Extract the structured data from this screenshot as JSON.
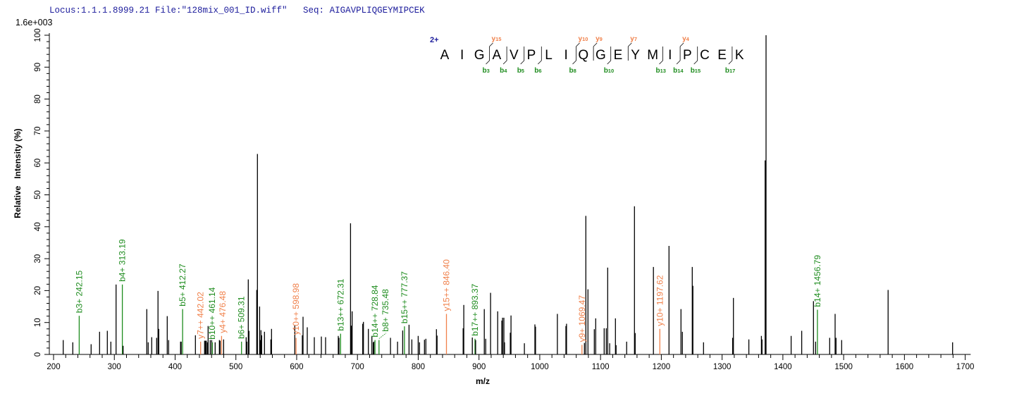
{
  "header": {
    "title": "Locus:1.1.1.8999.21 File:\"128mix_001_ID.wiff\"   Seq: AIGAVPLIQGEYMIPCEK"
  },
  "colors": {
    "b_ion": "#1e8c1e",
    "y_ion": "#f0804a",
    "unassigned": "#000000",
    "title": "#1c1c9c"
  },
  "sequence": {
    "charge": "2+",
    "residues": [
      "A",
      "I",
      "G",
      "A",
      "V",
      "P",
      "L",
      "I",
      "Q",
      "G",
      "E",
      "Y",
      "M",
      "I",
      "P",
      "C",
      "E",
      "K"
    ],
    "breaks": [
      {
        "after": 3,
        "b": "b3",
        "y": "y15"
      },
      {
        "after": 4,
        "b": "b4"
      },
      {
        "after": 5,
        "b": "b5"
      },
      {
        "after": 6,
        "b": "b6"
      },
      {
        "after": 8,
        "b": "b8",
        "y": "y10"
      },
      {
        "after": 9,
        "y": "y9"
      },
      {
        "after": 10,
        "b": "b10"
      },
      {
        "after": 11,
        "y": "y7"
      },
      {
        "after": 13,
        "b": "b13"
      },
      {
        "after": 14,
        "b": "b14",
        "y": "y4"
      },
      {
        "after": 15,
        "b": "b15"
      },
      {
        "after": 17,
        "b": "b17"
      }
    ]
  },
  "chart_data": {
    "type": "bar",
    "scale_label": "1.6e+003",
    "xlabel": "m/z",
    "ylabel": "Relative   Intensity (%)",
    "xlim": [
      193,
      1709
    ],
    "ylim": [
      0,
      100
    ],
    "x_ticks": [
      200,
      300,
      400,
      500,
      600,
      700,
      800,
      900,
      1000,
      1100,
      1200,
      1300,
      1400,
      1500,
      1600,
      1700
    ],
    "y_ticks": [
      0,
      10,
      20,
      30,
      40,
      50,
      60,
      70,
      80,
      90,
      100
    ],
    "grid": false,
    "peaks": [
      {
        "mz": 215.9,
        "i": 4.5
      },
      {
        "mz": 231.7,
        "i": 3.8
      },
      {
        "mz": 242.15,
        "i": 12.1,
        "ion": "b",
        "label": "b3+ 242.15"
      },
      {
        "mz": 261.8,
        "i": 3.2
      },
      {
        "mz": 275.7,
        "i": 7.1
      },
      {
        "mz": 288.5,
        "i": 7.4
      },
      {
        "mz": 294.3,
        "i": 4.0
      },
      {
        "mz": 302.8,
        "i": 21.9
      },
      {
        "mz": 313.19,
        "i": 21.9,
        "ion": "b",
        "label": "b4+ 313.19"
      },
      {
        "mz": 314.5,
        "i": 2.7
      },
      {
        "mz": 353.4,
        "i": 14.2
      },
      {
        "mz": 355.7,
        "i": 3.8
      },
      {
        "mz": 361.5,
        "i": 5.4
      },
      {
        "mz": 369.6,
        "i": 5.2
      },
      {
        "mz": 371.9,
        "i": 19.9
      },
      {
        "mz": 373.1,
        "i": 8.0
      },
      {
        "mz": 387.0,
        "i": 12.0
      },
      {
        "mz": 389.3,
        "i": 4.5
      },
      {
        "mz": 409.0,
        "i": 4.0
      },
      {
        "mz": 410.0,
        "i": 4.0
      },
      {
        "mz": 412.27,
        "i": 14.2,
        "ion": "b",
        "label": "b5+ 412.27"
      },
      {
        "mz": 433.4,
        "i": 6.0
      },
      {
        "mz": 442.02,
        "i": 4.0,
        "ion": "y",
        "label": "y7++ 442.02"
      },
      {
        "mz": 448.5,
        "i": 4.3
      },
      {
        "mz": 450.0,
        "i": 4.3
      },
      {
        "mz": 451.3,
        "i": 4.3
      },
      {
        "mz": 453.2,
        "i": 3.8
      },
      {
        "mz": 454.3,
        "i": 8.9
      },
      {
        "mz": 457.8,
        "i": 4.5
      },
      {
        "mz": 460.2,
        "i": 4.5
      },
      {
        "mz": 461.14,
        "i": 3.8,
        "ion": "b",
        "label": "b10++ 461.14"
      },
      {
        "mz": 465.9,
        "i": 3.8
      },
      {
        "mz": 472.8,
        "i": 4.5
      },
      {
        "mz": 474.0,
        "i": 4.3
      },
      {
        "mz": 476.48,
        "i": 5.8,
        "ion": "y",
        "label": "y4+ 476.48"
      },
      {
        "mz": 479.8,
        "i": 4.7
      },
      {
        "mz": 509.31,
        "i": 4.0,
        "ion": "b",
        "label": "b6+ 509.31"
      },
      {
        "mz": 516.9,
        "i": 5.4
      },
      {
        "mz": 518.0,
        "i": 4.0
      },
      {
        "mz": 520.4,
        "i": 23.5
      },
      {
        "mz": 521.5,
        "i": 7.4
      },
      {
        "mz": 534.3,
        "i": 20.2
      },
      {
        "mz": 535.5,
        "i": 62.8
      },
      {
        "mz": 539.0,
        "i": 15.0
      },
      {
        "mz": 540.0,
        "i": 4.5
      },
      {
        "mz": 541.2,
        "i": 7.6
      },
      {
        "mz": 542.4,
        "i": 6.0
      },
      {
        "mz": 547.0,
        "i": 7.1
      },
      {
        "mz": 557.5,
        "i": 4.7
      },
      {
        "mz": 558.7,
        "i": 8.0
      },
      {
        "mz": 596.9,
        "i": 9.0
      },
      {
        "mz": 598.98,
        "i": 5.2,
        "ion": "y",
        "label": "y10++ 598.98"
      },
      {
        "mz": 609.3,
        "i": 6.0
      },
      {
        "mz": 610.5,
        "i": 11.8
      },
      {
        "mz": 617.4,
        "i": 8.5
      },
      {
        "mz": 629.0,
        "i": 5.4
      },
      {
        "mz": 640.6,
        "i": 5.6
      },
      {
        "mz": 647.6,
        "i": 5.4
      },
      {
        "mz": 668.5,
        "i": 5.8
      },
      {
        "mz": 669.6,
        "i": 5.2
      },
      {
        "mz": 672.31,
        "i": 6.5,
        "ion": "b",
        "label": "b13++ 672.31"
      },
      {
        "mz": 688.6,
        "i": 41.1
      },
      {
        "mz": 690.1,
        "i": 9.0
      },
      {
        "mz": 691.3,
        "i": 13.5
      },
      {
        "mz": 708.7,
        "i": 9.6
      },
      {
        "mz": 709.9,
        "i": 10.2
      },
      {
        "mz": 718.0,
        "i": 8.0
      },
      {
        "mz": 723.8,
        "i": 5.8
      },
      {
        "mz": 726.1,
        "i": 3.8
      },
      {
        "mz": 727.0,
        "i": 4.0
      },
      {
        "mz": 728.84,
        "i": 4.5,
        "ion": "b",
        "label": "b14++ 728.84"
      },
      {
        "mz": 735.48,
        "i": 4.5,
        "ion": "b",
        "label": "b8+ 735.48"
      },
      {
        "mz": 754.4,
        "i": 5.2
      },
      {
        "mz": 766.0,
        "i": 4.0
      },
      {
        "mz": 774.4,
        "i": 7.5
      },
      {
        "mz": 777.37,
        "i": 8.8,
        "ion": "b",
        "label": "b15++ 777.37"
      },
      {
        "mz": 784.9,
        "i": 9.3
      },
      {
        "mz": 789.5,
        "i": 4.7
      },
      {
        "mz": 799.9,
        "i": 5.8
      },
      {
        "mz": 802.2,
        "i": 3.8
      },
      {
        "mz": 810.3,
        "i": 4.6
      },
      {
        "mz": 812.6,
        "i": 4.9
      },
      {
        "mz": 830.0,
        "i": 7.9
      },
      {
        "mz": 831.0,
        "i": 5.9
      },
      {
        "mz": 846.4,
        "i": 12.7,
        "ion": "y",
        "label": "y15++ 846.40"
      },
      {
        "mz": 873.9,
        "i": 8.2
      },
      {
        "mz": 875.0,
        "i": 15.5
      },
      {
        "mz": 889.0,
        "i": 5.3
      },
      {
        "mz": 893.37,
        "i": 4.9,
        "ion": "b",
        "label": "b17++ 893.37"
      },
      {
        "mz": 894.5,
        "i": 4.5
      },
      {
        "mz": 908.7,
        "i": 14.2
      },
      {
        "mz": 911.0,
        "i": 4.9
      },
      {
        "mz": 919.0,
        "i": 19.3
      },
      {
        "mz": 930.7,
        "i": 13.5
      },
      {
        "mz": 937.6,
        "i": 10.6
      },
      {
        "mz": 938.8,
        "i": 11.5
      },
      {
        "mz": 941.0,
        "i": 11.5
      },
      {
        "mz": 942.0,
        "i": 3.8
      },
      {
        "mz": 951.5,
        "i": 6.8
      },
      {
        "mz": 952.7,
        "i": 12.2
      },
      {
        "mz": 974.7,
        "i": 3.5
      },
      {
        "mz": 992.0,
        "i": 9.4
      },
      {
        "mz": 993.0,
        "i": 8.7
      },
      {
        "mz": 1029.0,
        "i": 12.7
      },
      {
        "mz": 1043.0,
        "i": 8.9
      },
      {
        "mz": 1044.0,
        "i": 9.6
      },
      {
        "mz": 1069.47,
        "i": 3.0,
        "ion": "y",
        "label": "y9+ 1069.47"
      },
      {
        "mz": 1073.5,
        "i": 3.6
      },
      {
        "mz": 1075.8,
        "i": 43.4
      },
      {
        "mz": 1079.3,
        "i": 20.4
      },
      {
        "mz": 1089.7,
        "i": 7.9
      },
      {
        "mz": 1092.0,
        "i": 11.3
      },
      {
        "mz": 1106.0,
        "i": 8.2
      },
      {
        "mz": 1109.4,
        "i": 8.2
      },
      {
        "mz": 1111.7,
        "i": 27.2
      },
      {
        "mz": 1115.0,
        "i": 3.5
      },
      {
        "mz": 1124.5,
        "i": 11.3
      },
      {
        "mz": 1125.6,
        "i": 2.9
      },
      {
        "mz": 1143.0,
        "i": 4.0
      },
      {
        "mz": 1155.8,
        "i": 46.4
      },
      {
        "mz": 1157.0,
        "i": 6.7
      },
      {
        "mz": 1187.0,
        "i": 27.4
      },
      {
        "mz": 1197.62,
        "i": 8.0,
        "ion": "y",
        "label": "y10+ 1197.62"
      },
      {
        "mz": 1212.6,
        "i": 34.0
      },
      {
        "mz": 1232.4,
        "i": 14.2
      },
      {
        "mz": 1234.7,
        "i": 7.1
      },
      {
        "mz": 1250.9,
        "i": 27.4
      },
      {
        "mz": 1252.0,
        "i": 21.5
      },
      {
        "mz": 1269.4,
        "i": 3.8
      },
      {
        "mz": 1317.4,
        "i": 5.2
      },
      {
        "mz": 1318.6,
        "i": 17.7
      },
      {
        "mz": 1344.0,
        "i": 4.7
      },
      {
        "mz": 1364.6,
        "i": 5.8
      },
      {
        "mz": 1365.7,
        "i": 4.7
      },
      {
        "mz": 1370.8,
        "i": 60.8
      },
      {
        "mz": 1372.3,
        "i": 100
      },
      {
        "mz": 1413.6,
        "i": 5.8
      },
      {
        "mz": 1431.0,
        "i": 7.4
      },
      {
        "mz": 1450.4,
        "i": 16.7
      },
      {
        "mz": 1456.79,
        "i": 14.0,
        "ion": "b",
        "label": "b14+ 1456.79"
      },
      {
        "mz": 1453.8,
        "i": 4.0
      },
      {
        "mz": 1477.0,
        "i": 5.2
      },
      {
        "mz": 1486.0,
        "i": 12.7
      },
      {
        "mz": 1487.4,
        "i": 5.2
      },
      {
        "mz": 1496.7,
        "i": 4.5
      },
      {
        "mz": 1573.2,
        "i": 20.2
      },
      {
        "mz": 1679.2,
        "i": 3.8
      }
    ]
  }
}
